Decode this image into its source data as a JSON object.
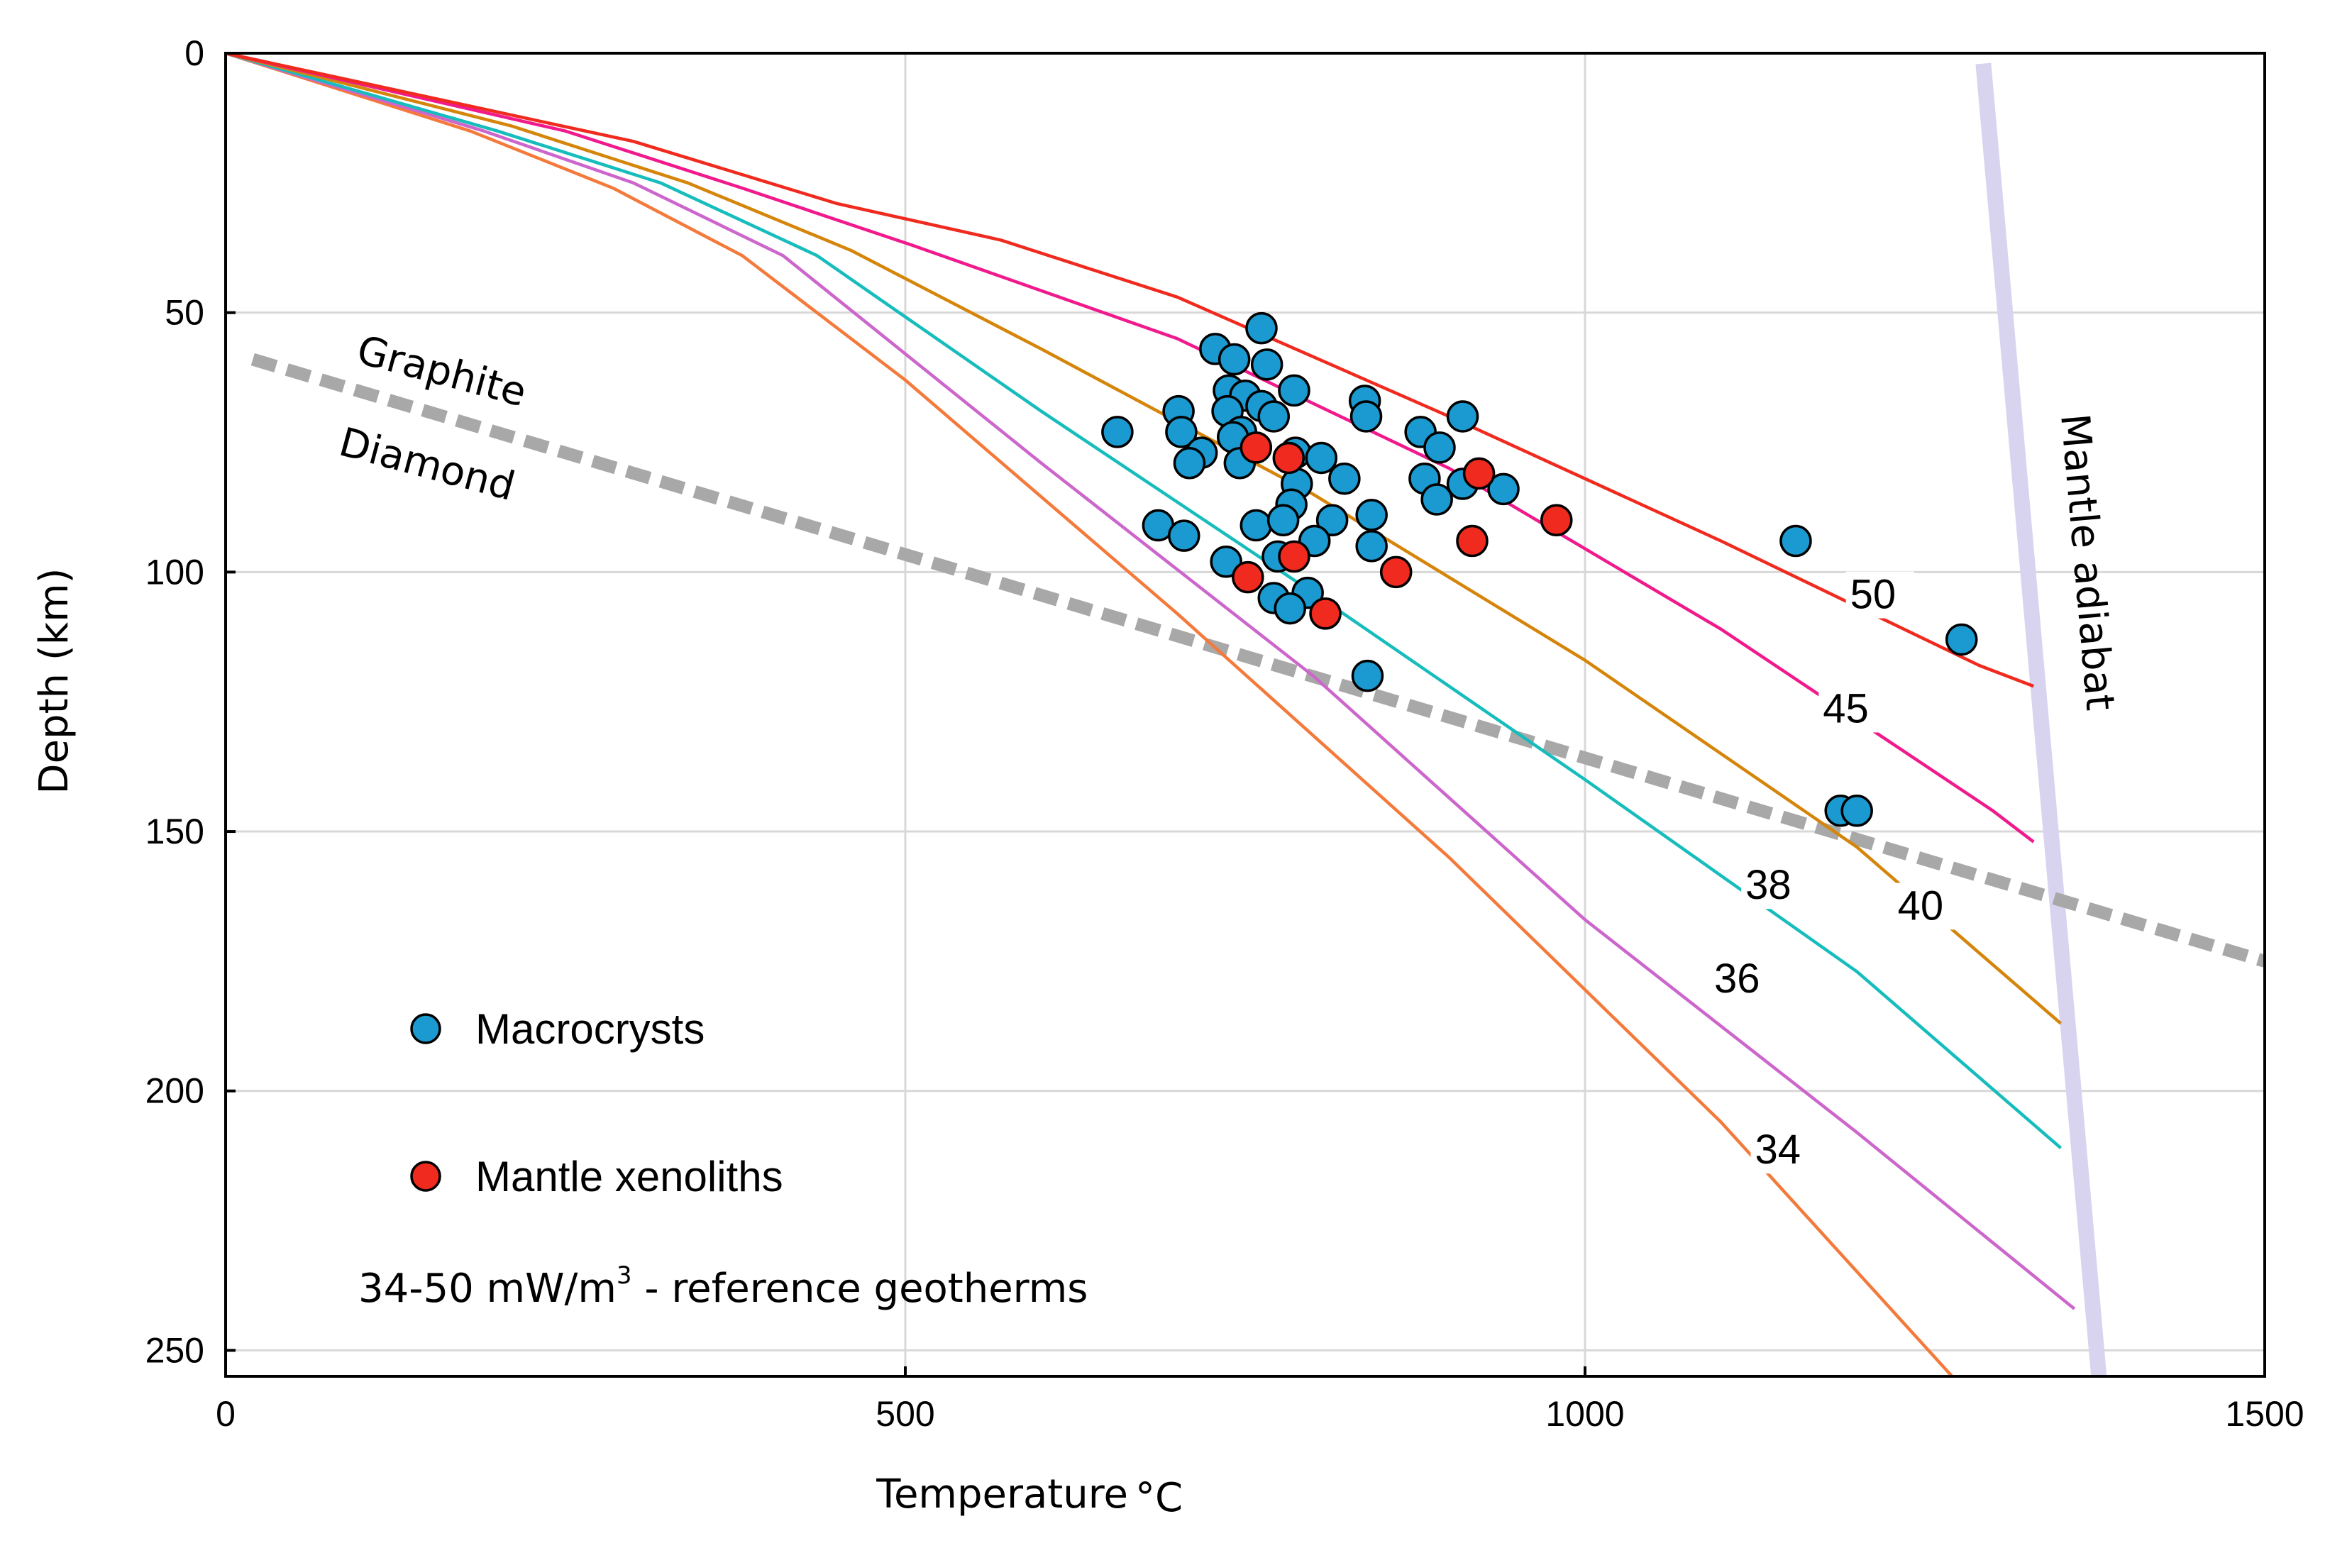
{
  "chart_data": {
    "type": "scatter",
    "xlabel": "Temperature",
    "xlabel_unit": "°C",
    "ylabel": "Depth (km)",
    "xlim": [
      0,
      1500
    ],
    "ylim": [
      0,
      255
    ],
    "y_inverted": true,
    "grid": true,
    "x_ticks": [
      0,
      500,
      1000,
      1500
    ],
    "y_ticks": [
      0,
      50,
      100,
      150,
      200,
      250
    ],
    "geotherms": [
      {
        "name": "34",
        "color": "#f47a3c",
        "points": [
          [
            0,
            0
          ],
          [
            180,
            15
          ],
          [
            285,
            26
          ],
          [
            380,
            39
          ],
          [
            500,
            63
          ],
          [
            700,
            108
          ],
          [
            900,
            155
          ],
          [
            1100,
            206
          ],
          [
            1270,
            255
          ]
        ],
        "label_at": [
          1125,
          214
        ]
      },
      {
        "name": "36",
        "color": "#cc66cc",
        "points": [
          [
            0,
            0
          ],
          [
            190,
            15
          ],
          [
            300,
            25
          ],
          [
            410,
            39
          ],
          [
            600,
            79
          ],
          [
            800,
            120
          ],
          [
            1000,
            167
          ],
          [
            1200,
            208
          ],
          [
            1360,
            242
          ]
        ],
        "label_at": [
          1095,
          181
        ]
      },
      {
        "name": "38",
        "color": "#17bcbc",
        "points": [
          [
            0,
            0
          ],
          [
            200,
            15
          ],
          [
            320,
            25
          ],
          [
            435,
            39
          ],
          [
            600,
            69
          ],
          [
            800,
            104
          ],
          [
            1000,
            140
          ],
          [
            1200,
            177
          ],
          [
            1350,
            211
          ]
        ],
        "label_at": [
          1118,
          163
        ]
      },
      {
        "name": "40",
        "color": "#d4850a",
        "points": [
          [
            0,
            0
          ],
          [
            210,
            14
          ],
          [
            340,
            25
          ],
          [
            460,
            38
          ],
          [
            600,
            57
          ],
          [
            800,
            85
          ],
          [
            1000,
            117
          ],
          [
            1200,
            153
          ],
          [
            1350,
            187
          ]
        ],
        "label_at": [
          1230,
          167
        ]
      },
      {
        "name": "45",
        "color": "#f01a8c",
        "points": [
          [
            0,
            0
          ],
          [
            250,
            15
          ],
          [
            380,
            26
          ],
          [
            505,
            37
          ],
          [
            700,
            55
          ],
          [
            900,
            80
          ],
          [
            1100,
            111
          ],
          [
            1300,
            146
          ],
          [
            1330,
            152
          ]
        ],
        "label_at": [
          1175,
          129
        ]
      },
      {
        "name": "50",
        "color": "#f02a1e",
        "points": [
          [
            0,
            0
          ],
          [
            300,
            17
          ],
          [
            450,
            29
          ],
          [
            570,
            36
          ],
          [
            700,
            47
          ],
          [
            900,
            70
          ],
          [
            1100,
            94
          ],
          [
            1290,
            118
          ],
          [
            1330,
            122
          ]
        ],
        "label_at": [
          1195,
          107
        ]
      }
    ],
    "graphite_diamond_boundary": {
      "points": [
        [
          20,
          59
        ],
        [
          1500,
          175
        ]
      ],
      "upper_label": "Graphite",
      "lower_label": "Diamond",
      "color": "#a8a8a8"
    },
    "mantle_adiabat": {
      "label": "Mantle adiabat",
      "points": [
        [
          1293,
          2
        ],
        [
          1378,
          255
        ]
      ],
      "color": "#d8d4f0"
    },
    "series": [
      {
        "name": "Macrocrysts",
        "color": "#1a9ad0",
        "points": [
          [
            762,
            53
          ],
          [
            728,
            57
          ],
          [
            742,
            59
          ],
          [
            766,
            60
          ],
          [
            738,
            65
          ],
          [
            750,
            66
          ],
          [
            786,
            65
          ],
          [
            762,
            68
          ],
          [
            701,
            69
          ],
          [
            737,
            69
          ],
          [
            771,
            70
          ],
          [
            838,
            67
          ],
          [
            839,
            70
          ],
          [
            910,
            70
          ],
          [
            747,
            73
          ],
          [
            656,
            73
          ],
          [
            703,
            73
          ],
          [
            741,
            74
          ],
          [
            879,
            73
          ],
          [
            893,
            76
          ],
          [
            718,
            77
          ],
          [
            709,
            79
          ],
          [
            746,
            79
          ],
          [
            787,
            77
          ],
          [
            806,
            78
          ],
          [
            788,
            83
          ],
          [
            823,
            82
          ],
          [
            882,
            82
          ],
          [
            910,
            83
          ],
          [
            940,
            84
          ],
          [
            784,
            87
          ],
          [
            891,
            86
          ],
          [
            814,
            90
          ],
          [
            843,
            89
          ],
          [
            686,
            91
          ],
          [
            705,
            93
          ],
          [
            758,
            91
          ],
          [
            778,
            90
          ],
          [
            801,
            94
          ],
          [
            843,
            95
          ],
          [
            736,
            98
          ],
          [
            774,
            97
          ],
          [
            771,
            105
          ],
          [
            796,
            104
          ],
          [
            783,
            107
          ],
          [
            840,
            120
          ],
          [
            1155,
            94
          ],
          [
            1277,
            113
          ],
          [
            1188,
            146
          ],
          [
            1200,
            146
          ]
        ]
      },
      {
        "name": "Mantle xenoliths",
        "color": "#f02a1e",
        "points": [
          [
            758,
            76
          ],
          [
            782,
            78
          ],
          [
            922,
            81
          ],
          [
            979,
            90
          ],
          [
            917,
            94
          ],
          [
            786,
            97
          ],
          [
            861,
            100
          ],
          [
            752,
            101
          ],
          [
            809,
            108
          ]
        ]
      }
    ],
    "legend": [
      {
        "label": "Macrocrysts",
        "color": "#1a9ad0"
      },
      {
        "label": "Mantle xenoliths",
        "color": "#f02a1e"
      }
    ],
    "annotation": {
      "text": "34-50 mW/m",
      "superscript": "3",
      "suffix": " - reference geotherms"
    }
  }
}
